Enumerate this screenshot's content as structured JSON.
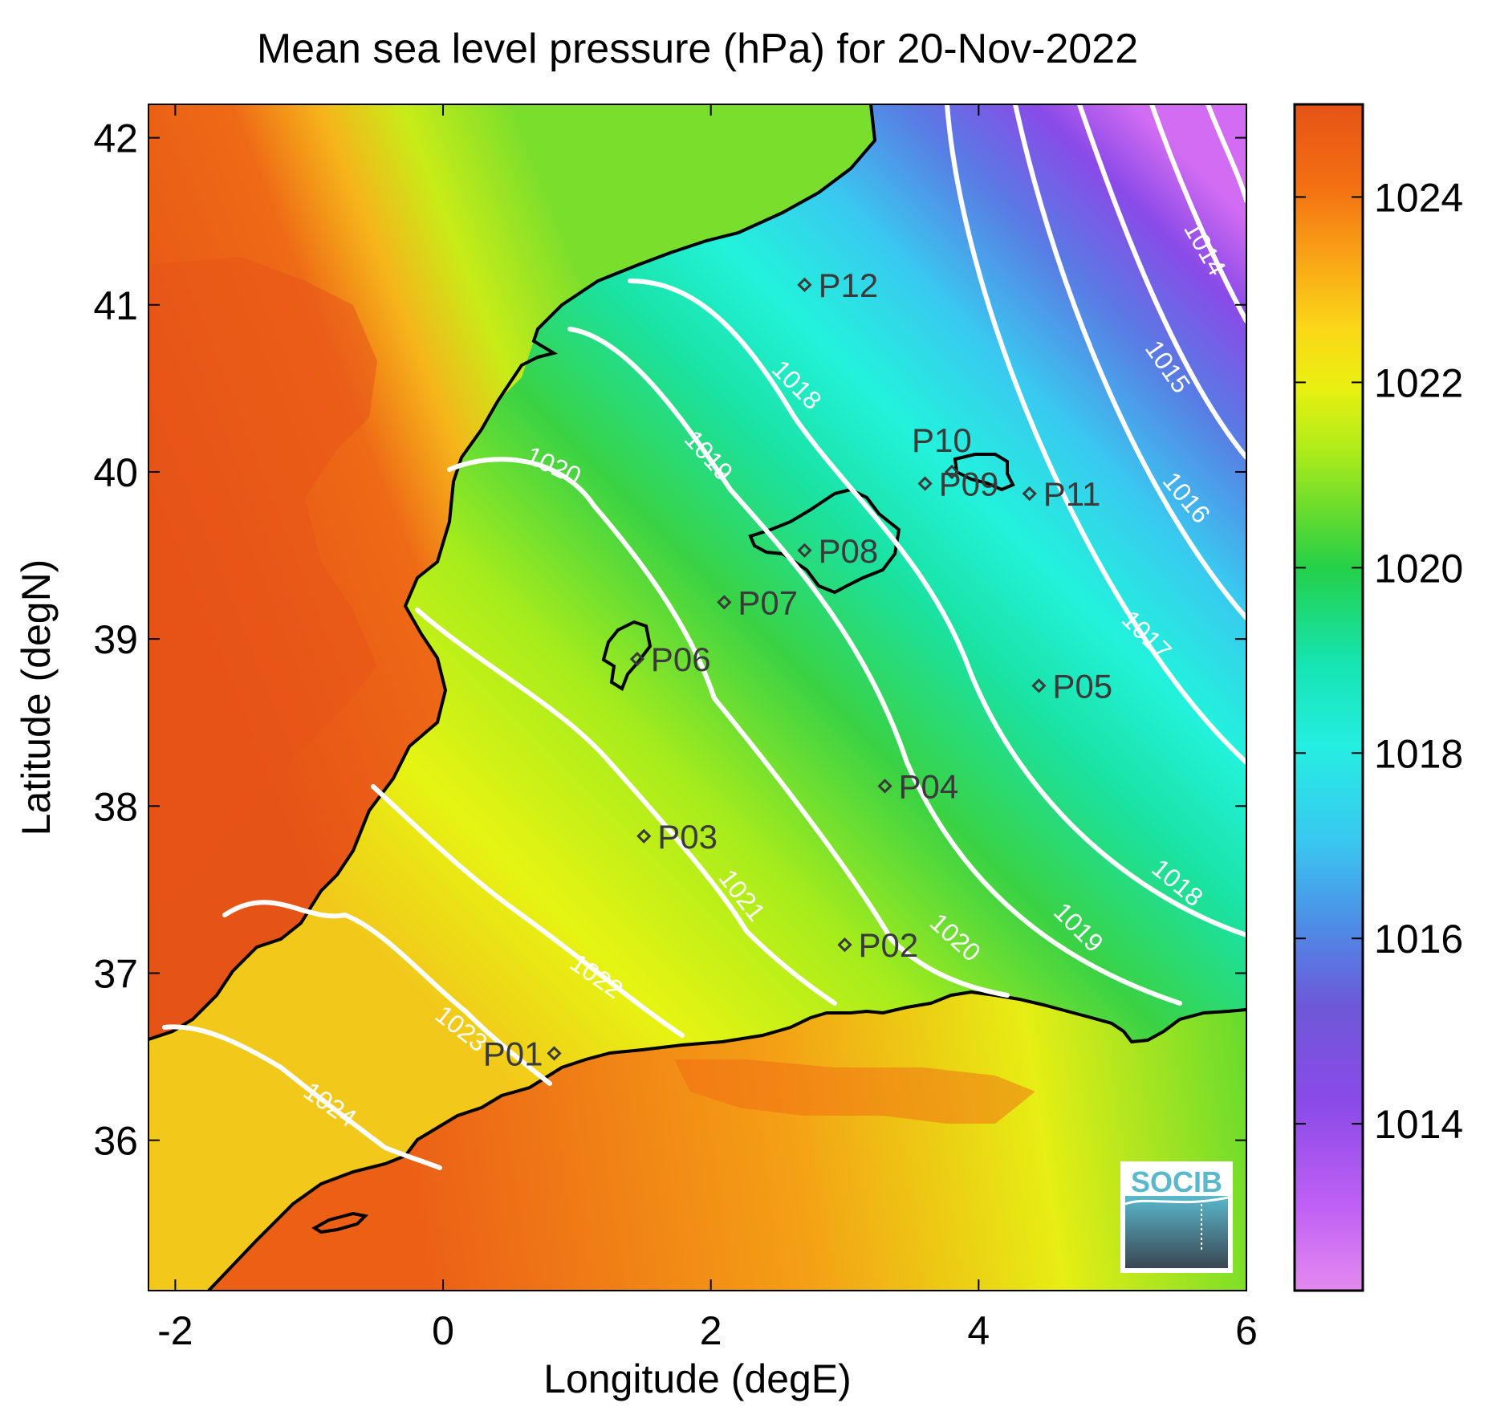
{
  "title": "Mean sea level pressure (hPa) for 20-Nov-2022",
  "xlabel": "Longitude (degE)",
  "ylabel": "Latitude (degN)",
  "x_ticks": [
    "-2",
    "0",
    "2",
    "4",
    "6"
  ],
  "y_ticks": [
    "42",
    "41",
    "40",
    "39",
    "38",
    "37",
    "36"
  ],
  "colorbar": {
    "ticks": [
      "1024",
      "1022",
      "1020",
      "1018",
      "1016",
      "1014"
    ],
    "range": [
      1012.2,
      1025
    ],
    "colors": [
      "#e48af0",
      "#c060f4",
      "#8a4ae8",
      "#6e58d8",
      "#4d8ee6",
      "#39c8f0",
      "#25eee2",
      "#15e4b0",
      "#25d048",
      "#6cdc2c",
      "#b0ec1a",
      "#e8f010",
      "#fbd818",
      "#f9a416",
      "#f37012",
      "#e65316"
    ]
  },
  "map": {
    "extent_lon": [
      -2.2,
      6
    ],
    "extent_lat": [
      35.1,
      42.2
    ],
    "contour_levels": [
      "1014",
      "1015",
      "1016",
      "1017",
      "1018",
      "1018",
      "1019",
      "1019",
      "1020",
      "1020",
      "1021",
      "1022",
      "1023",
      "1024"
    ],
    "stations": [
      {
        "id": "P01",
        "lon": 0.83,
        "lat": 36.52
      },
      {
        "id": "P02",
        "lon": 3.0,
        "lat": 37.17
      },
      {
        "id": "P03",
        "lon": 1.5,
        "lat": 37.82
      },
      {
        "id": "P04",
        "lon": 3.3,
        "lat": 38.12
      },
      {
        "id": "P05",
        "lon": 4.45,
        "lat": 38.72
      },
      {
        "id": "P06",
        "lon": 1.45,
        "lat": 38.88
      },
      {
        "id": "P07",
        "lon": 2.1,
        "lat": 39.22
      },
      {
        "id": "P08",
        "lon": 2.7,
        "lat": 39.53
      },
      {
        "id": "P09",
        "lon": 3.6,
        "lat": 39.93
      },
      {
        "id": "P10",
        "lon": 3.8,
        "lat": 40.0
      },
      {
        "id": "P11",
        "lon": 4.38,
        "lat": 39.87
      },
      {
        "id": "P12",
        "lon": 2.7,
        "lat": 41.12
      }
    ]
  },
  "logo_text": "SOCIB"
}
